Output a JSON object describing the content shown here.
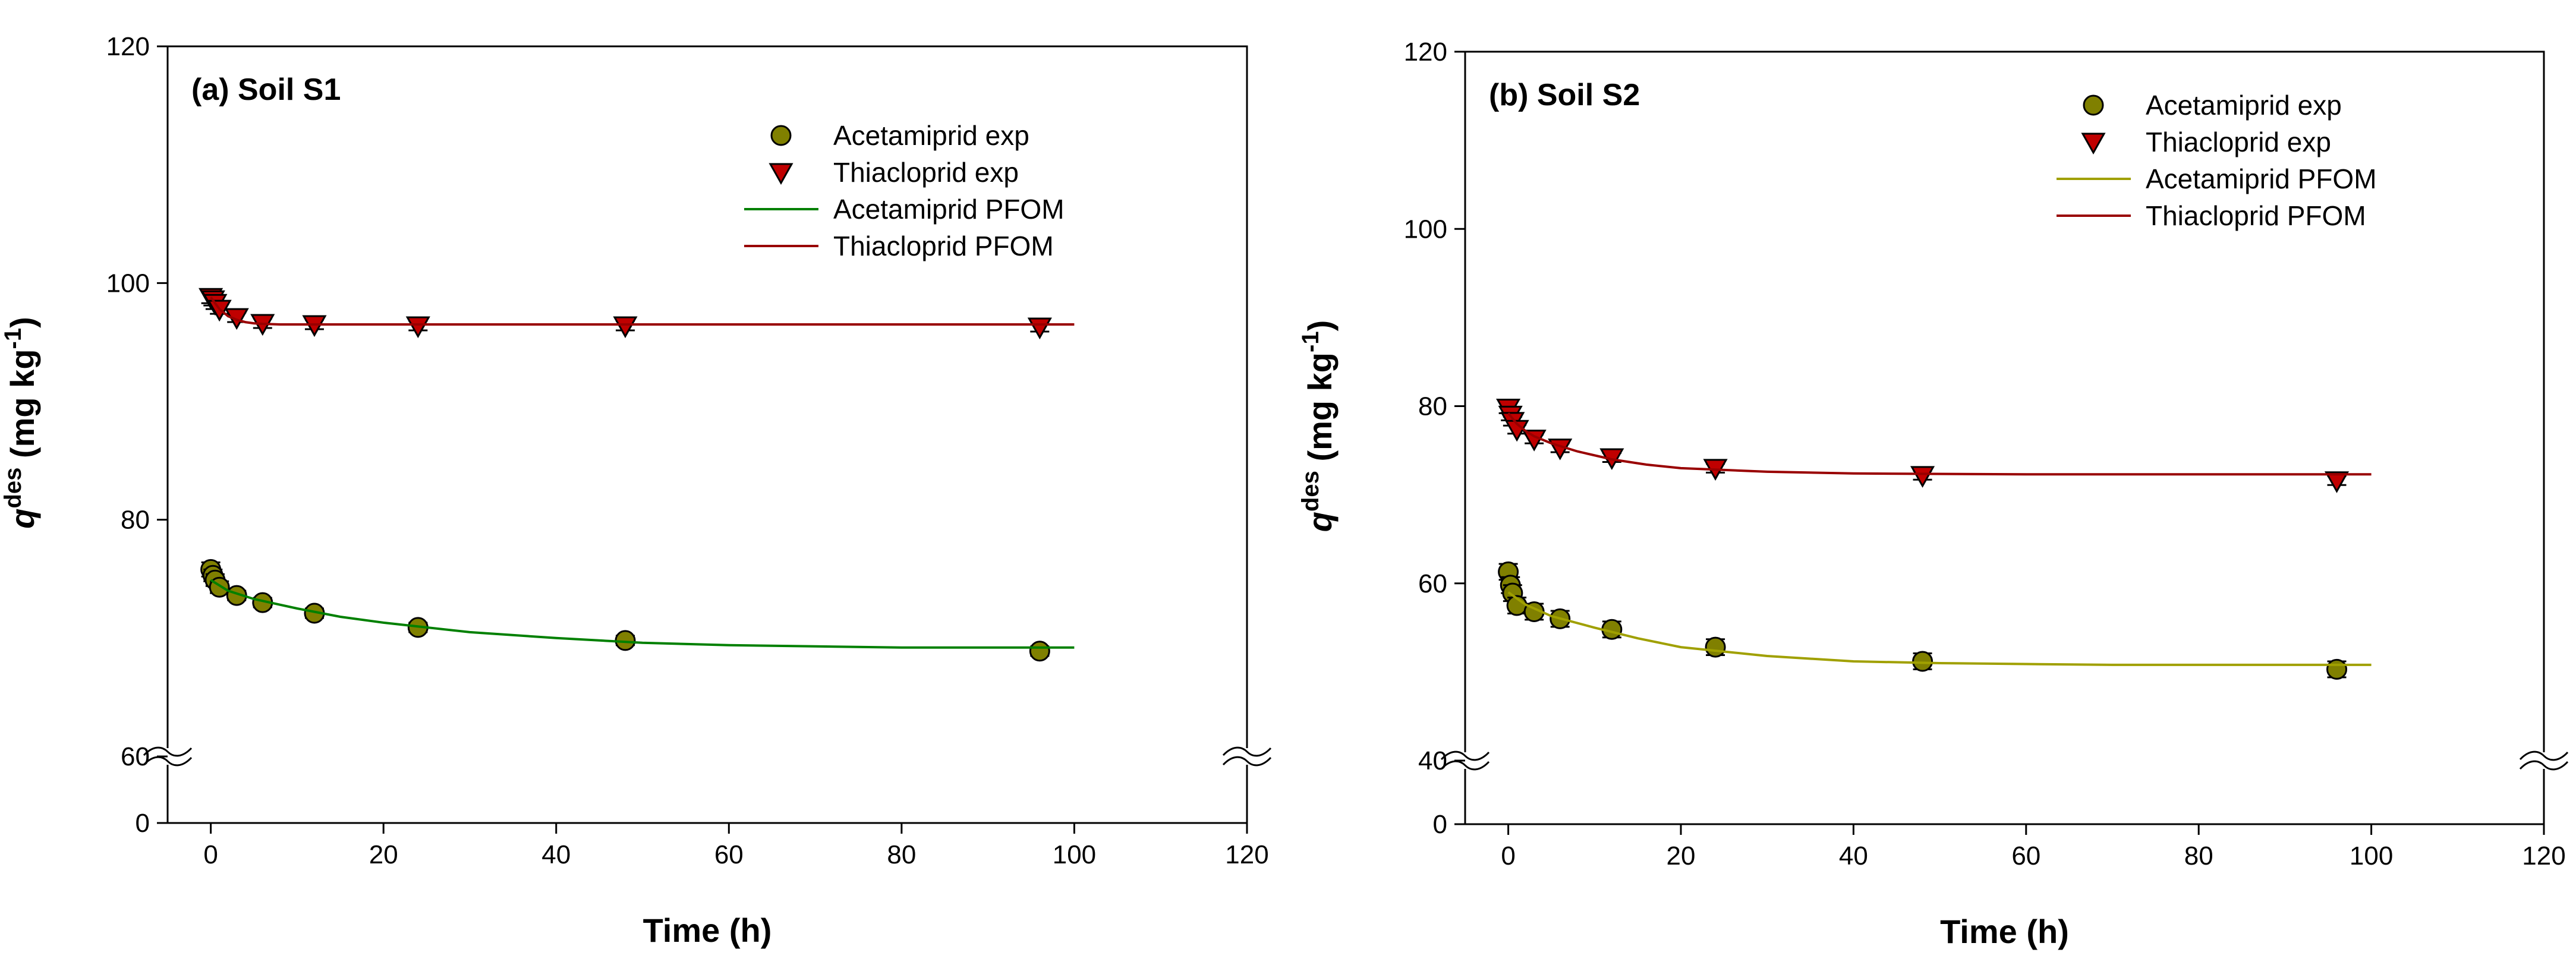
{
  "chart_data": [
    {
      "type": "scatter",
      "title": "(a) Soil S1",
      "xlabel": "Time (h)",
      "ylabel_main": "q",
      "ylabel_sup": "des",
      "ylabel_unit": " (mg kg",
      "ylabel_unit_sup": "-1",
      "ylabel_close": ")",
      "xlim": [
        -5,
        120
      ],
      "xticks": [
        0,
        20,
        40,
        60,
        80,
        100,
        120
      ],
      "xtick_labels": [
        "0",
        "20",
        "40",
        "60",
        "80",
        "100",
        "120"
      ],
      "ylim_upper": [
        60,
        120
      ],
      "ylim_lower": [
        0,
        60
      ],
      "yticks": [
        0,
        60,
        80,
        100,
        120
      ],
      "ytick_labels": [
        "0",
        "60",
        "80",
        "100",
        "120"
      ],
      "axis_break": true,
      "legend_position": "top-right",
      "series": [
        {
          "name": "Acetamiprid exp",
          "kind": "points",
          "marker": "circle",
          "color": "#808000",
          "x": [
            0,
            0.25,
            0.5,
            1,
            3,
            6,
            12,
            24,
            48,
            96
          ],
          "y": [
            75.8,
            75.3,
            74.9,
            74.3,
            73.6,
            73.0,
            72.1,
            70.9,
            69.8,
            68.9
          ],
          "err": [
            0.6,
            0.5,
            0.5,
            0.5,
            0.4,
            0.4,
            0.4,
            0.4,
            0.4,
            0.4
          ]
        },
        {
          "name": "Thiacloprid exp",
          "kind": "points",
          "marker": "triangle-down",
          "color": "#c00000",
          "x": [
            0,
            0.25,
            0.5,
            1,
            3,
            6,
            12,
            24,
            48,
            96
          ],
          "y": [
            98.8,
            98.6,
            98.3,
            97.8,
            97.1,
            96.6,
            96.5,
            96.4,
            96.4,
            96.3
          ],
          "err": [
            0.5,
            0.5,
            0.5,
            0.4,
            0.4,
            0.4,
            0.4,
            0.4,
            0.4,
            0.4
          ]
        },
        {
          "name": "Acetamiprid PFOM",
          "kind": "line",
          "color": "#008000",
          "x": [
            0,
            2,
            5,
            10,
            15,
            20,
            30,
            40,
            50,
            60,
            70,
            80,
            90,
            100
          ],
          "y": [
            74.9,
            74.0,
            73.3,
            72.5,
            71.8,
            71.3,
            70.5,
            70.0,
            69.6,
            69.4,
            69.3,
            69.2,
            69.2,
            69.2
          ]
        },
        {
          "name": "Thiacloprid PFOM",
          "kind": "line",
          "color": "#990000",
          "x": [
            0,
            1,
            2,
            3,
            4,
            5,
            6,
            8,
            10,
            20,
            40,
            60,
            80,
            100
          ],
          "y": [
            98.8,
            97.8,
            97.2,
            96.9,
            96.7,
            96.6,
            96.55,
            96.5,
            96.5,
            96.5,
            96.5,
            96.5,
            96.5,
            96.5
          ]
        }
      ]
    },
    {
      "type": "scatter",
      "title": "(b) Soil S2",
      "xlabel": "Time (h)",
      "ylabel_main": "q",
      "ylabel_sup": "des",
      "ylabel_unit": " (mg kg",
      "ylabel_unit_sup": "-1",
      "ylabel_close": ")",
      "xlim": [
        -5,
        120
      ],
      "xticks": [
        0,
        20,
        40,
        60,
        80,
        100,
        120
      ],
      "xtick_labels": [
        "0",
        "20",
        "40",
        "60",
        "80",
        "100",
        "120"
      ],
      "ylim_upper": [
        40,
        120
      ],
      "ylim_lower": [
        0,
        40
      ],
      "yticks": [
        0,
        40,
        60,
        80,
        100,
        120
      ],
      "ytick_labels": [
        "0",
        "40",
        "60",
        "80",
        "100",
        "120"
      ],
      "axis_break": true,
      "legend_position": "top-right",
      "series": [
        {
          "name": "Acetamiprid exp",
          "kind": "points",
          "marker": "circle",
          "color": "#808000",
          "x": [
            0,
            0.25,
            0.5,
            1,
            3,
            6,
            12,
            24,
            48,
            96
          ],
          "y": [
            61.3,
            59.8,
            58.9,
            57.5,
            56.8,
            56.0,
            54.8,
            52.8,
            51.2,
            50.3
          ],
          "err": [
            0.9,
            0.9,
            0.9,
            0.9,
            0.9,
            0.9,
            0.9,
            0.9,
            0.9,
            0.9
          ]
        },
        {
          "name": "Thiacloprid exp",
          "kind": "points",
          "marker": "triangle-down",
          "color": "#c00000",
          "x": [
            0,
            0.25,
            0.5,
            1,
            3,
            6,
            12,
            24,
            48,
            96
          ],
          "y": [
            79.8,
            79.0,
            78.3,
            77.4,
            76.3,
            75.3,
            74.2,
            73.0,
            72.2,
            71.6
          ],
          "err": [
            0.6,
            0.6,
            0.5,
            0.5,
            0.5,
            0.5,
            0.5,
            0.5,
            0.5,
            0.5
          ]
        },
        {
          "name": "Acetamiprid PFOM",
          "kind": "line",
          "color": "#a0a000",
          "x": [
            0,
            2,
            5,
            10,
            15,
            20,
            30,
            40,
            50,
            60,
            70,
            80,
            90,
            100
          ],
          "y": [
            59.0,
            57.6,
            56.3,
            55.0,
            53.8,
            52.8,
            51.8,
            51.2,
            51.0,
            50.9,
            50.8,
            50.8,
            50.8,
            50.8
          ]
        },
        {
          "name": "Thiacloprid PFOM",
          "kind": "line",
          "color": "#990000",
          "x": [
            0,
            1,
            2,
            3,
            5,
            8,
            12,
            16,
            20,
            30,
            40,
            60,
            80,
            100
          ],
          "y": [
            79.2,
            78.0,
            77.2,
            76.6,
            75.8,
            74.9,
            74.0,
            73.4,
            73.0,
            72.6,
            72.4,
            72.3,
            72.3,
            72.3
          ]
        }
      ]
    }
  ]
}
